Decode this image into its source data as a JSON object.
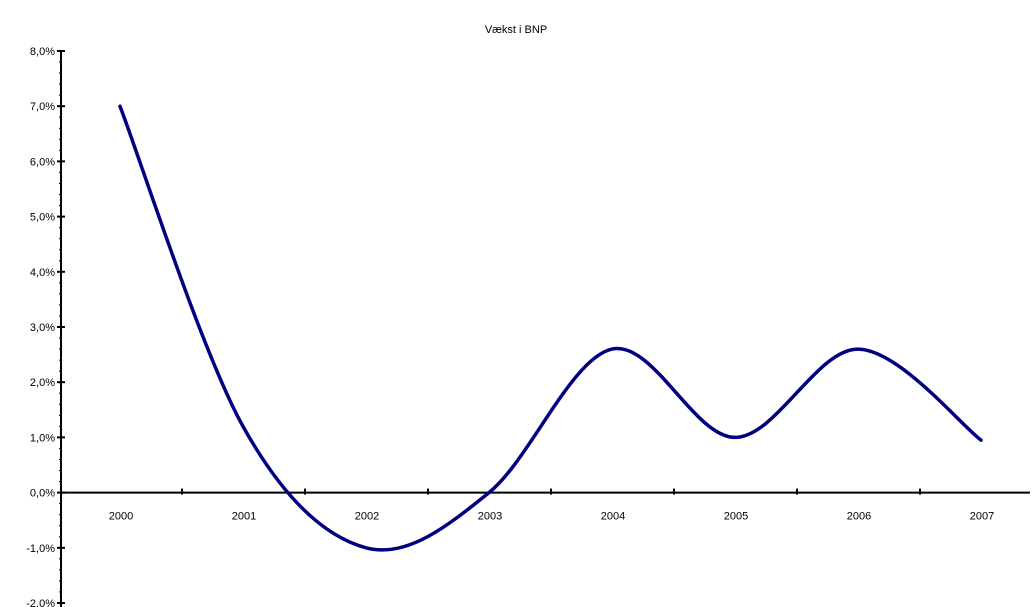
{
  "chart_data": {
    "type": "line",
    "title": "Vækst i BNP",
    "xlabel": "",
    "ylabel": "",
    "categories": [
      "2000",
      "2001",
      "2002",
      "2003",
      "2004",
      "2005",
      "2006",
      "2007"
    ],
    "series": [
      {
        "values": [
          7.0,
          1.2,
          -1.0,
          0.0,
          2.6,
          1.0,
          2.6,
          0.95
        ],
        "color": "#000080"
      }
    ],
    "ylim": [
      -2,
      8
    ],
    "yticks": [
      "-2,0%",
      "-1,0%",
      "0,0%",
      "1,0%",
      "2,0%",
      "3,0%",
      "4,0%",
      "5,0%",
      "6,0%",
      "7,0%",
      "8,0%"
    ],
    "grid": false,
    "legend": "none"
  }
}
